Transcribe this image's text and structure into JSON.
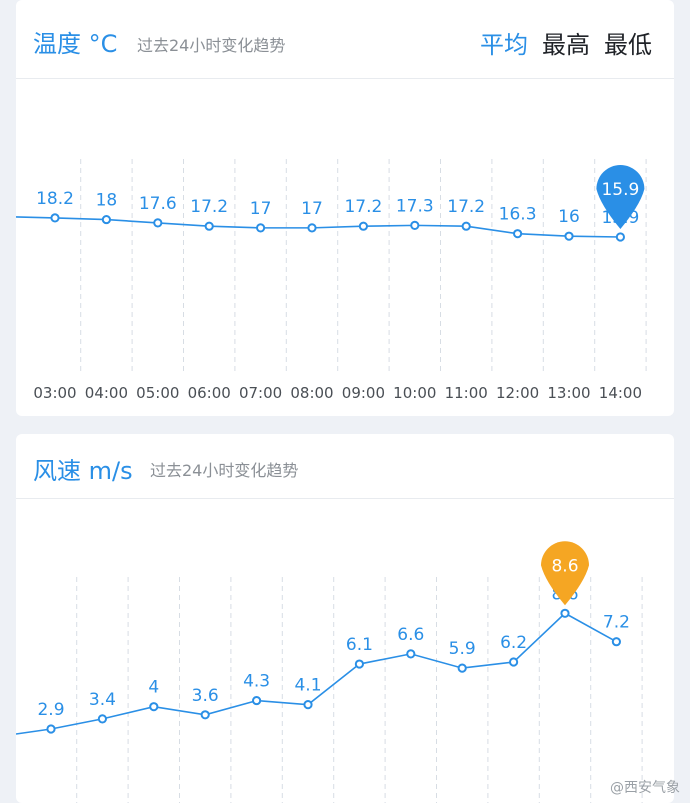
{
  "temperature_panel": {
    "title": "温度 °C",
    "subtitle": "过去24小时变化趋势",
    "tabs": [
      "平均",
      "最高",
      "最低"
    ],
    "active_tab": 0,
    "highlight_value": "15.9",
    "accent_color": "#2a8fe6"
  },
  "wind_panel": {
    "title": "风速 m/s",
    "subtitle": "过去24小时变化趋势",
    "highlight_value": "8.6",
    "highlight_color": "#f5a623"
  },
  "watermark": "@西安气象",
  "chart_data": [
    {
      "type": "line",
      "title": "温度 °C",
      "x": [
        "03:00",
        "04:00",
        "05:00",
        "06:00",
        "07:00",
        "08:00",
        "09:00",
        "10:00",
        "11:00",
        "12:00",
        "13:00",
        "14:00"
      ],
      "values": [
        18.2,
        18,
        17.6,
        17.2,
        17,
        17,
        17.2,
        17.3,
        17.2,
        16.3,
        16,
        15.9
      ],
      "highlight_index": 11,
      "grid": true
    },
    {
      "type": "line",
      "title": "风速 m/s",
      "x": [
        "",
        "",
        "",
        "",
        "",
        "",
        "",
        "",
        "",
        "",
        "",
        ""
      ],
      "values": [
        2.9,
        3.4,
        4,
        3.6,
        4.3,
        4.1,
        6.1,
        6.6,
        5.9,
        6.2,
        8.6,
        7.2
      ],
      "highlight_index": 10,
      "grid": true
    }
  ]
}
